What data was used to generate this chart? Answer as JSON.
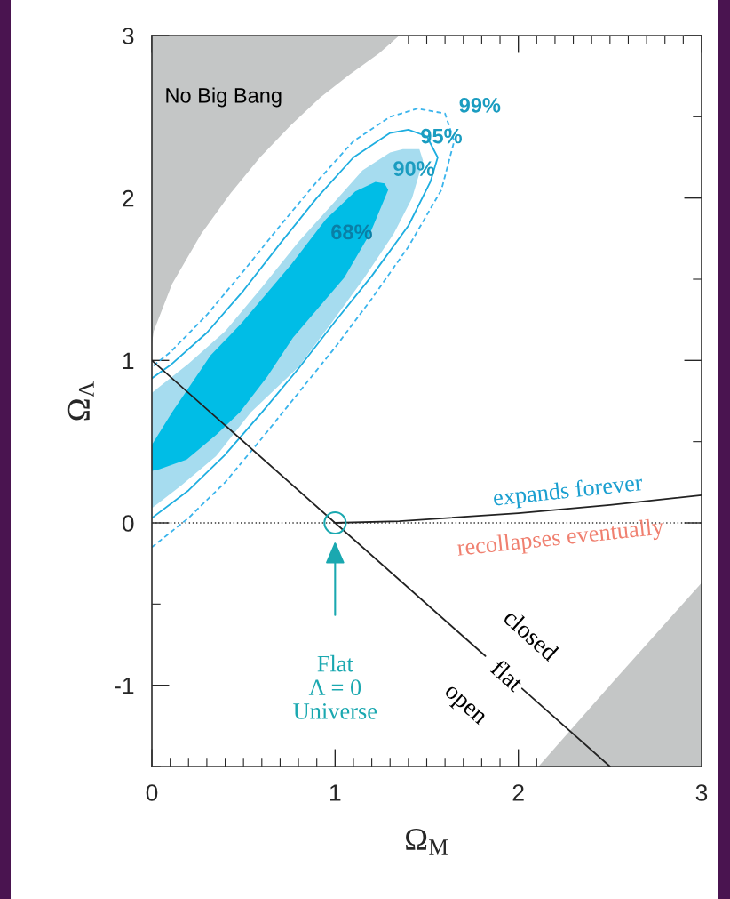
{
  "chart_data": {
    "type": "area",
    "xlabel": "Ω$_{M}$",
    "ylabel": "Ω$_{Λ}$",
    "xlim": [
      0,
      3
    ],
    "ylim": [
      -1.5,
      3
    ],
    "xticks": [
      0,
      {
        "value": 0.1,
        "label": null
      },
      {
        "value": 0.2,
        "label": null
      },
      {
        "value": 0.3,
        "label": null
      },
      {
        "value": 0.4,
        "label": null
      },
      {
        "value": 0.5,
        "label": null
      },
      {
        "value": 0.6,
        "label": null
      },
      {
        "value": 0.7,
        "label": null
      },
      {
        "value": 0.8,
        "label": null
      },
      {
        "value": 0.9,
        "label": null
      },
      1,
      {
        "value": 1.1,
        "label": null
      },
      {
        "value": 1.2,
        "label": null
      },
      {
        "value": 1.3,
        "label": null
      },
      {
        "value": 1.4,
        "label": null
      },
      {
        "value": 1.5,
        "label": null
      },
      {
        "value": 1.6,
        "label": null
      },
      {
        "value": 1.7,
        "label": null
      },
      {
        "value": 1.8,
        "label": null
      },
      {
        "value": 1.9,
        "label": null
      },
      2,
      {
        "value": 2.1,
        "label": null
      },
      {
        "value": 2.2,
        "label": null
      },
      {
        "value": 2.3,
        "label": null
      },
      {
        "value": 2.4,
        "label": null
      },
      {
        "value": 2.5,
        "label": null
      },
      {
        "value": 2.6,
        "label": null
      },
      {
        "value": 2.7,
        "label": null
      },
      {
        "value": 2.8,
        "label": null
      },
      {
        "value": 2.9,
        "label": null
      },
      3
    ],
    "yticks": [
      {
        "value": -1.5,
        "label": null
      },
      -1,
      {
        "value": -0.5,
        "label": null
      },
      0,
      {
        "value": 0.5,
        "label": null
      },
      1,
      {
        "value": 1.5,
        "label": null
      },
      2,
      {
        "value": 2.5,
        "label": null
      },
      3
    ],
    "ref_lines": [
      {
        "axis": "y",
        "value": 0,
        "color": "#333333",
        "line_style": "dotted"
      }
    ],
    "series": [
      {
        "color": "#c4c6c6",
        "x": [
          0,
          0,
          0.01,
          0.11,
          0.27,
          0.43,
          0.59,
          0.76,
          0.92,
          1.08,
          1.24,
          1.35
        ],
        "values": [
          3,
          1.1,
          1.18,
          1.47,
          1.78,
          2.03,
          2.25,
          2.45,
          2.62,
          2.76,
          2.89,
          3
        ]
      },
      {
        "color": "#c4c6c6",
        "x": [
          2.11,
          2.5,
          3,
          3
        ],
        "values": [
          -1.5,
          -1.0,
          -0.37,
          -1.5
        ]
      },
      {
        "color": "#a6dcef",
        "x": [
          0,
          0,
          0.16,
          0.35,
          0.54,
          0.8,
          0.98,
          1.16,
          1.32,
          1.42,
          1.48,
          1.46,
          1.37,
          1.3,
          1.15,
          1.0,
          0.8,
          0.6,
          0.4,
          0.2,
          0
        ],
        "values": [
          0.8,
          0.09,
          0.23,
          0.41,
          0.68,
          0.96,
          1.23,
          1.51,
          1.78,
          2.0,
          2.23,
          2.3,
          2.3,
          2.28,
          2.17,
          1.98,
          1.73,
          1.45,
          1.18,
          0.98,
          0.8
        ]
      },
      {
        "color": "#00bde6",
        "x": [
          0,
          0.04,
          0.19,
          0.35,
          0.48,
          0.63,
          0.77,
          1.05,
          1.19,
          1.29,
          1.27,
          1.22,
          1.11,
          0.95,
          0.76,
          0.49,
          0.32,
          0.11,
          0,
          0
        ],
        "values": [
          0.32,
          0.33,
          0.39,
          0.54,
          0.68,
          0.9,
          1.14,
          1.51,
          1.78,
          2.05,
          2.09,
          2.1,
          2.04,
          1.87,
          1.59,
          1.23,
          1.03,
          0.68,
          0.48,
          0.32
        ]
      },
      {
        "type": "line",
        "color": "#1eaee0",
        "line_style": "solid",
        "x": [
          0,
          0.2,
          0.4,
          0.6,
          0.8,
          1.0,
          1.2,
          1.4,
          1.52,
          1.56,
          1.5,
          1.4,
          1.3,
          1.1,
          0.9,
          0.7,
          0.5,
          0.3,
          0.1,
          0
        ],
        "values": [
          0.03,
          0.2,
          0.42,
          0.68,
          0.95,
          1.24,
          1.52,
          1.83,
          2.1,
          2.25,
          2.38,
          2.42,
          2.4,
          2.25,
          2.0,
          1.72,
          1.43,
          1.17,
          0.97,
          0.89
        ]
      },
      {
        "type": "line",
        "color": "#3ab4ec",
        "line_style": "dashed",
        "x": [
          0,
          0.2,
          0.4,
          0.6,
          0.8,
          1.0,
          1.2,
          1.4,
          1.58,
          1.65,
          1.6,
          1.45,
          1.3,
          1.1,
          0.9,
          0.7,
          0.5,
          0.3,
          0.1,
          0
        ],
        "values": [
          -0.15,
          0.03,
          0.25,
          0.52,
          0.8,
          1.08,
          1.38,
          1.7,
          2.05,
          2.35,
          2.52,
          2.55,
          2.5,
          2.35,
          2.1,
          1.83,
          1.55,
          1.28,
          1.05,
          0.96
        ]
      },
      {
        "type": "line",
        "color": "#222222",
        "line_style": "solid",
        "x": [
          0,
          1.82,
          1.92,
          2.02,
          2.5
        ],
        "values": [
          1,
          -0.82,
          null,
          -1.02,
          -1.5
        ]
      },
      {
        "type": "line",
        "color": "#222222",
        "line_style": "solid",
        "x": [
          1.0,
          1.35,
          2.0,
          2.5,
          3.0
        ],
        "values": [
          0,
          0.01,
          0.06,
          0.11,
          0.17
        ]
      },
      {
        "type": "scatter",
        "color": "#1aa8b0",
        "marker": "circle",
        "x": [
          1
        ],
        "values": [
          0
        ]
      }
    ],
    "annotations": [
      "No Big Bang",
      "99%",
      "95%",
      "90%",
      "68%",
      "expands forever",
      "recollapses eventually",
      "closed",
      "flat",
      "open",
      "Flat\nΛ = 0\nUniverse"
    ]
  }
}
